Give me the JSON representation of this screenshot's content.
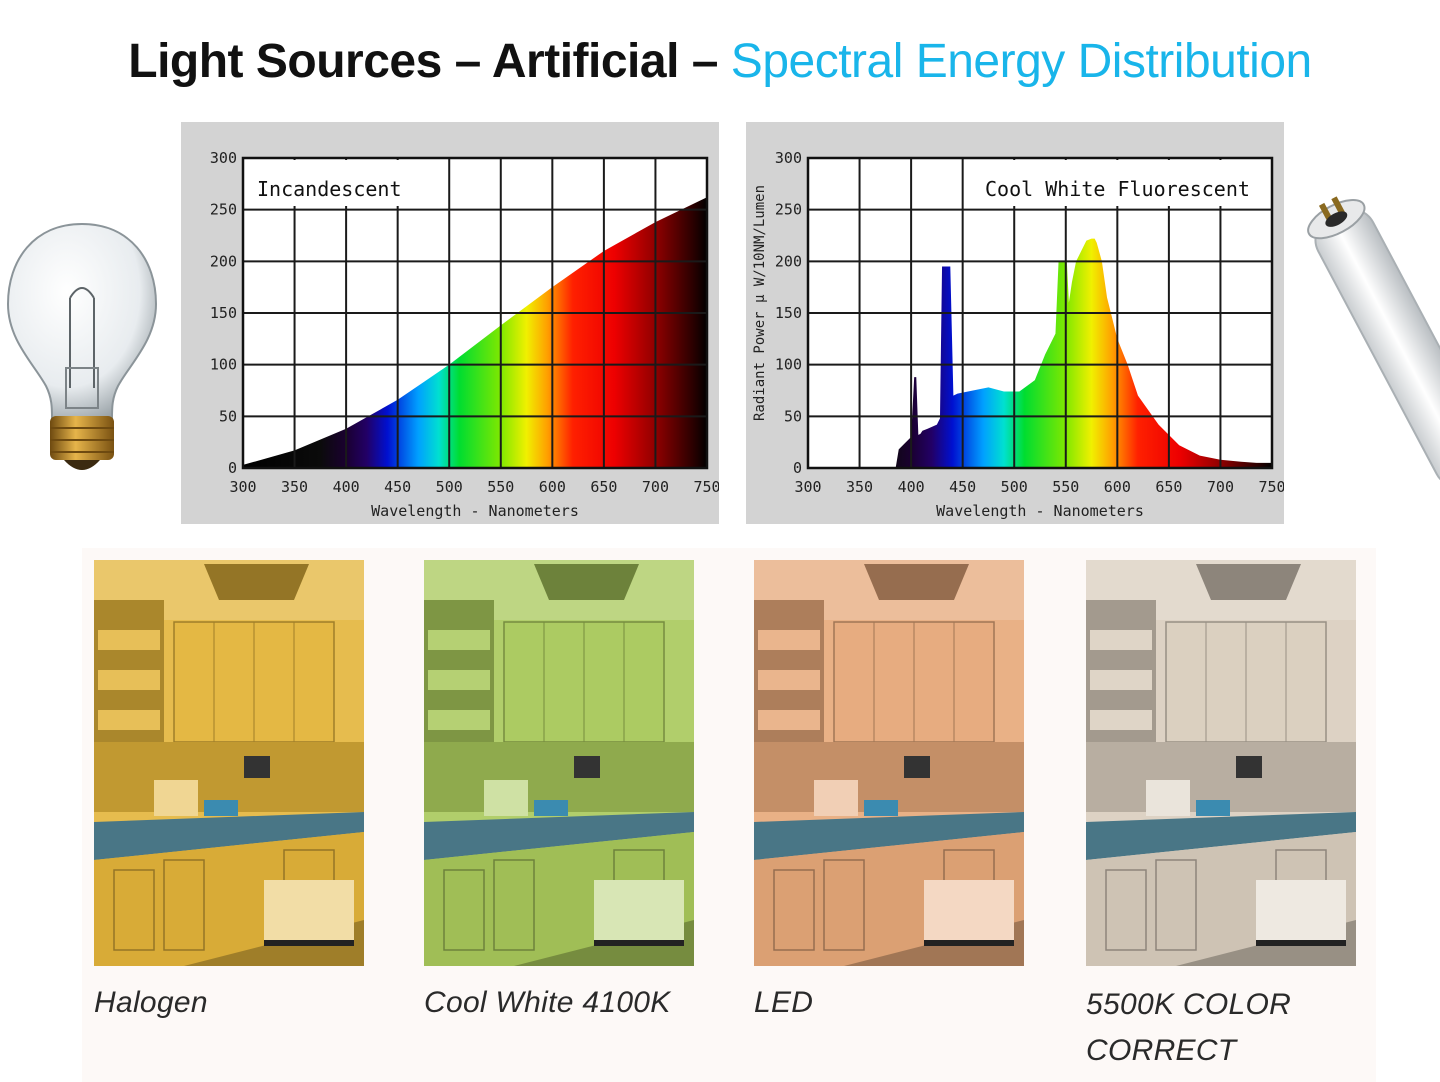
{
  "slide": {
    "title_main": "Light Sources – Artificial – ",
    "title_accent": "Spectral  Energy Distribution"
  },
  "colors": {
    "accent": "#19b5ea",
    "panel_bg": "#d3d3d3",
    "halogen_tint": "#e3b43a",
    "cool_white_tint": "#a8c85a",
    "led_tint": "#e6a879",
    "correct_tint": "#d9cdbd"
  },
  "chart_data": [
    {
      "type": "area",
      "title": "Incandescent",
      "xlabel": "Wavelength - Nanometers",
      "ylabel": "",
      "xlim": [
        300,
        750
      ],
      "ylim": [
        0,
        300
      ],
      "xticks": [
        300,
        350,
        400,
        450,
        500,
        550,
        600,
        650,
        700,
        750
      ],
      "yticks": [
        0,
        50,
        100,
        150,
        200,
        250,
        300
      ],
      "grid": true,
      "fill": "visible-spectrum",
      "series": [
        {
          "name": "Incandescent",
          "x": [
            300,
            350,
            400,
            450,
            500,
            550,
            600,
            650,
            700,
            750
          ],
          "y": [
            3,
            17,
            38,
            66,
            100,
            138,
            175,
            210,
            238,
            262
          ]
        }
      ]
    },
    {
      "type": "area",
      "title": "Cool White Fluorescent",
      "xlabel": "Wavelength - Nanometers",
      "ylabel": "Radiant Power  μ W/10NM/Lumen",
      "xlim": [
        300,
        750
      ],
      "ylim": [
        0,
        300
      ],
      "xticks": [
        300,
        350,
        400,
        450,
        500,
        550,
        600,
        650,
        700,
        750
      ],
      "yticks": [
        0,
        50,
        100,
        150,
        200,
        250,
        300
      ],
      "grid": true,
      "fill": "visible-spectrum",
      "series": [
        {
          "name": "Cool White Fluorescent",
          "x": [
            385,
            388,
            395,
            400,
            403,
            405,
            407,
            409,
            411,
            416,
            425,
            428,
            430,
            433,
            436,
            438,
            441,
            445,
            460,
            475,
            490,
            505,
            520,
            530,
            540,
            543,
            545,
            548,
            551,
            553,
            556,
            560,
            570,
            575,
            578,
            580,
            585,
            590,
            595,
            600,
            610,
            620,
            640,
            660,
            680,
            700,
            720,
            735,
            750
          ],
          "y": [
            0,
            18,
            25,
            30,
            88,
            88,
            32,
            33,
            36,
            38,
            42,
            48,
            195,
            195,
            195,
            195,
            70,
            72,
            75,
            78,
            74,
            74,
            85,
            110,
            130,
            200,
            200,
            200,
            200,
            160,
            180,
            200,
            220,
            222,
            222,
            218,
            200,
            165,
            145,
            125,
            100,
            70,
            42,
            22,
            12,
            8,
            6,
            5,
            5
          ]
        }
      ]
    }
  ],
  "photos": [
    {
      "caption": "Halogen"
    },
    {
      "caption": "Cool White 4100K"
    },
    {
      "caption": "LED"
    },
    {
      "caption_line1": "5500K COLOR",
      "caption_line2": "CORRECT"
    }
  ]
}
